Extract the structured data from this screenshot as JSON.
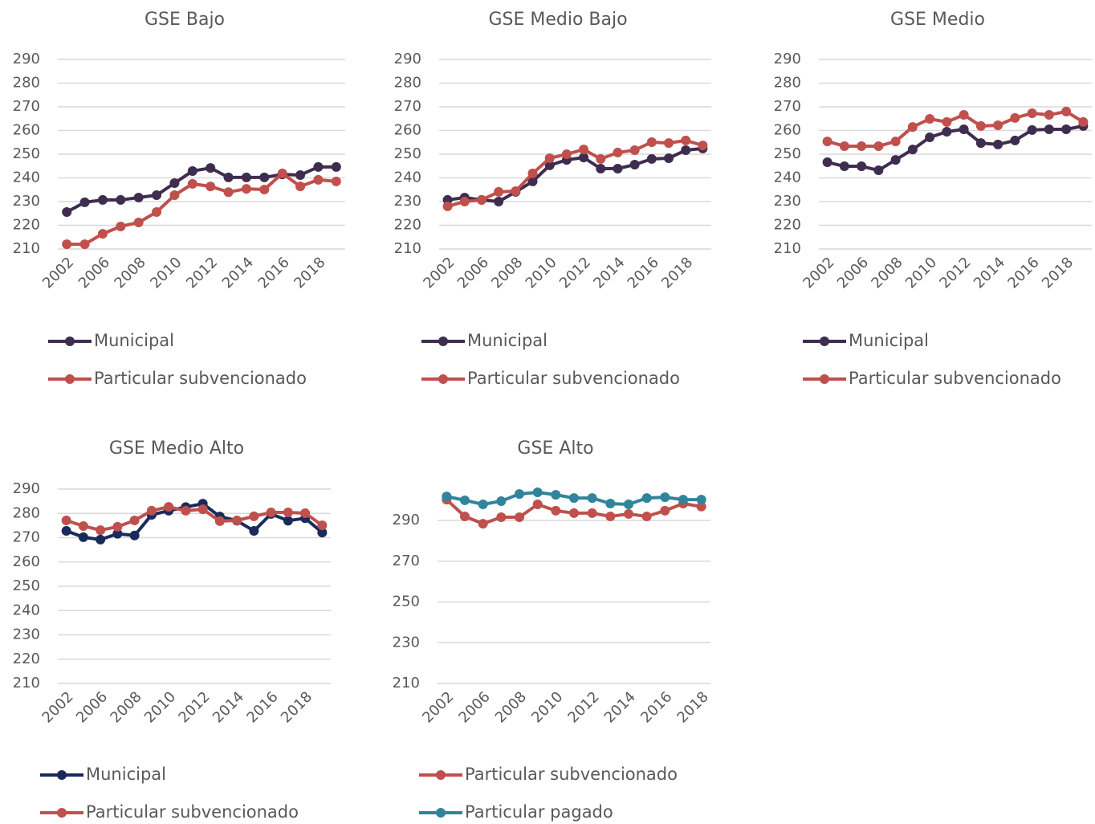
{
  "chart_data": [
    {
      "type": "line",
      "title": "GSE Bajo",
      "categories": [
        "2002",
        null,
        "2006",
        null,
        "2008",
        null,
        "2010",
        null,
        "2012",
        null,
        "2014",
        null,
        "2016",
        null,
        "2018",
        null
      ],
      "series": [
        {
          "name": "Municipal",
          "color": "#3f2d4f",
          "values": [
            225.6,
            229.7,
            230.7,
            230.7,
            231.7,
            232.7,
            237.8,
            242.9,
            244.2,
            240.2,
            240.2,
            240.2,
            241.5,
            241.2,
            244.6,
            244.6
          ]
        },
        {
          "name": "Particular subvencionado",
          "color": "#c0504d",
          "values": [
            212.0,
            212.0,
            216.4,
            219.5,
            221.2,
            225.6,
            232.7,
            237.5,
            236.4,
            234.0,
            235.4,
            235.1,
            241.9,
            236.4,
            239.2,
            238.5
          ]
        }
      ],
      "ylim": [
        210,
        290
      ],
      "yticks": [
        210,
        220,
        230,
        240,
        250,
        260,
        270,
        280,
        290
      ],
      "grid": true
    },
    {
      "type": "line",
      "title": "GSE Medio Bajo",
      "categories": [
        "2002",
        null,
        "2006",
        null,
        "2008",
        null,
        "2010",
        null,
        "2012",
        null,
        "2014",
        null,
        "2016",
        null,
        "2018",
        null
      ],
      "series": [
        {
          "name": "Municipal",
          "color": "#3f2d4f",
          "values": [
            230.7,
            231.7,
            230.7,
            230.0,
            234.1,
            238.5,
            245.3,
            247.6,
            248.6,
            243.9,
            243.9,
            245.6,
            248.0,
            248.3,
            251.7,
            252.4
          ]
        },
        {
          "name": "Particular subvencionado",
          "color": "#c0504d",
          "values": [
            228.0,
            230.0,
            230.7,
            234.1,
            234.4,
            241.9,
            248.3,
            250.0,
            252.0,
            248.0,
            250.7,
            251.7,
            255.1,
            254.7,
            255.8,
            253.7
          ]
        }
      ],
      "ylim": [
        210,
        290
      ],
      "yticks": [
        210,
        220,
        230,
        240,
        250,
        260,
        270,
        280,
        290
      ],
      "grid": true
    },
    {
      "type": "line",
      "title": "GSE Medio",
      "categories": [
        "2002",
        null,
        "2006",
        null,
        "2008",
        null,
        "2010",
        null,
        "2012",
        null,
        "2014",
        null,
        "2016",
        null,
        "2018",
        null
      ],
      "series": [
        {
          "name": "Municipal",
          "color": "#3f2d4f",
          "values": [
            246.6,
            244.9,
            244.9,
            243.2,
            247.6,
            252.0,
            257.1,
            259.5,
            260.5,
            254.7,
            254.1,
            255.8,
            260.2,
            260.5,
            260.5,
            261.9
          ]
        },
        {
          "name": "Particular subvencionado",
          "color": "#c0504d",
          "values": [
            255.4,
            253.4,
            253.4,
            253.4,
            255.4,
            261.5,
            264.9,
            263.6,
            266.6,
            261.9,
            262.2,
            265.3,
            267.3,
            266.6,
            268.0,
            263.6
          ]
        }
      ],
      "ylim": [
        210,
        290
      ],
      "yticks": [
        210,
        220,
        230,
        240,
        250,
        260,
        270,
        280,
        290
      ],
      "grid": true
    },
    {
      "type": "line",
      "title": "GSE Medio Alto",
      "categories": [
        "2002",
        null,
        "2006",
        null,
        "2008",
        null,
        "2010",
        null,
        "2012",
        null,
        "2014",
        null,
        "2016",
        null,
        "2018",
        null
      ],
      "series": [
        {
          "name": "Municipal",
          "color": "#1b2a5c",
          "values": [
            272.8,
            270.2,
            269.2,
            271.6,
            270.9,
            279.4,
            281.1,
            282.6,
            284.0,
            278.7,
            277.0,
            272.8,
            279.8,
            277.0,
            278.0,
            272.1
          ]
        },
        {
          "name": "Particular subvencionado",
          "color": "#c0504d",
          "values": [
            277.1,
            274.8,
            273.1,
            274.5,
            277.1,
            281.1,
            282.7,
            281.1,
            281.7,
            276.8,
            277.1,
            278.8,
            280.4,
            280.4,
            280.1,
            275.1
          ]
        }
      ],
      "ylim": [
        210,
        290
      ],
      "yticks": [
        210,
        220,
        230,
        240,
        250,
        260,
        270,
        280,
        290
      ],
      "grid": true
    },
    {
      "type": "line",
      "title": "GSE Alto",
      "categories": [
        "2002",
        null,
        "2006",
        null,
        "2008",
        null,
        "2010",
        null,
        "2012",
        null,
        "2014",
        null,
        "2016",
        null,
        "2018"
      ],
      "series": [
        {
          "name": "Particular subvencionado",
          "color": "#c0504d",
          "values": [
            300.2,
            292.0,
            288.4,
            291.6,
            291.6,
            297.9,
            294.8,
            293.6,
            293.6,
            292.0,
            293.2,
            292.0,
            294.8,
            298.3,
            296.8
          ]
        },
        {
          "name": "Particular pagado",
          "color": "#31849b",
          "values": [
            301.8,
            299.9,
            297.9,
            299.5,
            303.0,
            303.8,
            302.6,
            301.0,
            301.0,
            298.3,
            297.9,
            301.0,
            301.4,
            300.2,
            300.2
          ]
        }
      ],
      "ylim": [
        210,
        305
      ],
      "yticks": [
        210,
        230,
        250,
        270,
        290
      ],
      "grid": true
    }
  ]
}
